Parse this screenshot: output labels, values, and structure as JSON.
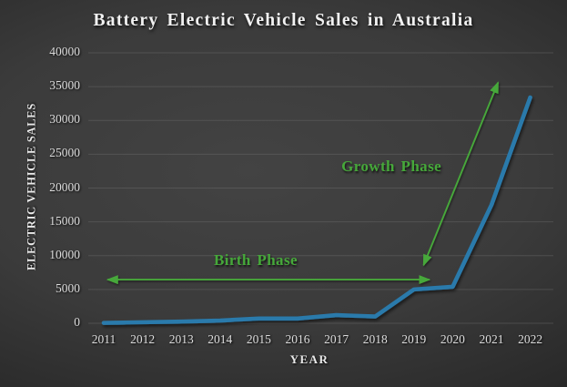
{
  "chart_data": {
    "type": "line",
    "title": "Battery Electric Vehicle Sales in Australia",
    "xlabel": "YEAR",
    "ylabel": "ELECTRIC VEHICLE SALES",
    "categories": [
      "2011",
      "2012",
      "2013",
      "2014",
      "2015",
      "2016",
      "2017",
      "2018",
      "2019",
      "2020",
      "2021",
      "2022"
    ],
    "series": [
      {
        "name": "Battery Electric Vehicle Sales",
        "values": [
          50,
          150,
          250,
          400,
          700,
          700,
          1200,
          1000,
          5000,
          5400,
          17500,
          33400
        ]
      }
    ],
    "ylim": [
      0,
      40000
    ],
    "yticks": [
      0,
      5000,
      10000,
      15000,
      20000,
      25000,
      30000,
      35000,
      40000
    ],
    "grid": true,
    "legend": "none",
    "line_color": "#2a7aab",
    "annotation_color": "#46a83a",
    "annotations": [
      {
        "label": "Birth Phase",
        "kind": "double-headed-arrow",
        "from": {
          "year": 2011.1,
          "value": 6450
        },
        "to": {
          "year": 2019.4,
          "value": 6450
        },
        "label_anchor": {
          "year": 2014.92,
          "value": 7950
        }
      },
      {
        "label": "Growth Phase",
        "kind": "double-headed-arrow",
        "from": {
          "year": 2019.25,
          "value": 8600
        },
        "to": {
          "year": 2021.17,
          "value": 35600
        },
        "label_anchor": {
          "year": 2018.42,
          "value": 21800
        }
      }
    ]
  }
}
